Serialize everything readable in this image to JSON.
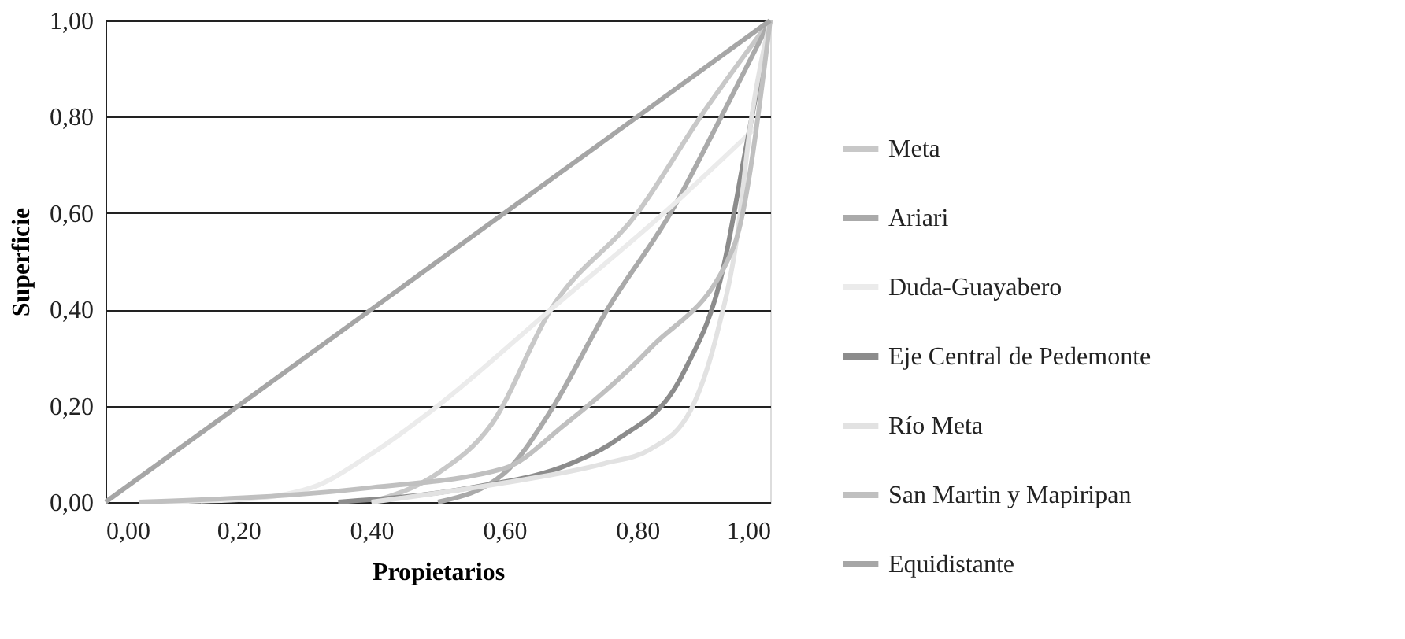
{
  "chart_data": {
    "type": "line",
    "xlabel": "Propietarios",
    "ylabel": "Superficie",
    "xlim": [
      0,
      1
    ],
    "ylim": [
      0,
      1
    ],
    "xticks": [
      {
        "value": 0,
        "label": "0,00"
      },
      {
        "value": 0.2,
        "label": "0,20"
      },
      {
        "value": 0.4,
        "label": "0,40"
      },
      {
        "value": 0.6,
        "label": "0,60"
      },
      {
        "value": 0.8,
        "label": "0,80"
      },
      {
        "value": 1,
        "label": "1,00"
      }
    ],
    "yticks": [
      {
        "value": 0,
        "label": "0,00"
      },
      {
        "value": 0.2,
        "label": "0,20"
      },
      {
        "value": 0.4,
        "label": "0,40"
      },
      {
        "value": 0.6,
        "label": "0,60"
      },
      {
        "value": 0.8,
        "label": "0,80"
      },
      {
        "value": 1,
        "label": "1,00"
      }
    ],
    "grid": "y",
    "legend": "right",
    "marker": "none",
    "line_style": "solid",
    "series": [
      {
        "name": "Meta",
        "color": "#c8c8c8",
        "x": [
          0.4,
          0.5,
          0.58,
          0.67,
          0.8,
          0.9,
          1
        ],
        "values": [
          0,
          0.06,
          0.16,
          0.4,
          0.6,
          0.81,
          1
        ]
      },
      {
        "name": "Ariari",
        "color": "#aaaaaa",
        "x": [
          0.5,
          0.6,
          0.67,
          0.755,
          0.85,
          0.93,
          1
        ],
        "values": [
          0,
          0.06,
          0.19,
          0.4,
          0.6,
          0.81,
          1
        ]
      },
      {
        "name": "Duda-Guayabero",
        "color": "#ebebeb",
        "x": [
          0.05,
          0.2,
          0.31,
          0.4,
          0.5,
          0.67,
          0.84,
          0.98
        ],
        "values": [
          0,
          0.005,
          0.03,
          0.1,
          0.2,
          0.4,
          0.6,
          0.78
        ]
      },
      {
        "name": "Eje Central de Pedemonte",
        "color": "#8c8c8c",
        "x": [
          0.35,
          0.55,
          0.7,
          0.77,
          0.87,
          0.93,
          0.96,
          1
        ],
        "values": [
          0,
          0.03,
          0.08,
          0.13,
          0.27,
          0.49,
          0.71,
          1
        ]
      },
      {
        "name": "Río Meta",
        "color": "#e2e2e2",
        "x": [
          0.4,
          0.6,
          0.75,
          0.82,
          0.88,
          0.92,
          0.95,
          0.97,
          1
        ],
        "values": [
          0,
          0.04,
          0.08,
          0.11,
          0.19,
          0.35,
          0.55,
          0.78,
          1
        ]
      },
      {
        "name": "San Martin y Mapiripan",
        "color": "#c0c0c0",
        "x": [
          0.05,
          0.4,
          0.6,
          0.69,
          0.82,
          0.945,
          1
        ],
        "values": [
          0,
          0.03,
          0.07,
          0.16,
          0.32,
          0.53,
          1
        ]
      },
      {
        "name": "Equidistante",
        "color": "#a6a6a6",
        "x": [
          0,
          1
        ],
        "values": [
          0,
          1
        ]
      }
    ]
  }
}
